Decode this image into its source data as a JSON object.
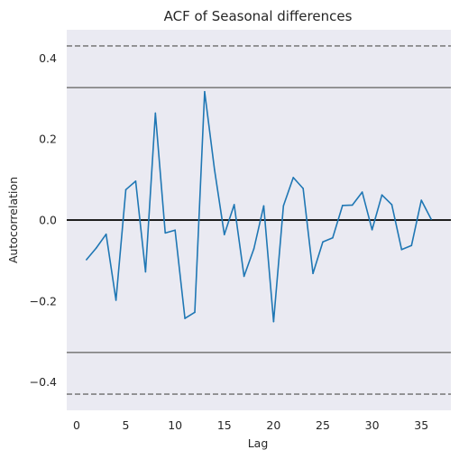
{
  "chart_data": {
    "type": "line",
    "title": "ACF of Seasonal differences",
    "xlabel": "Lag",
    "ylabel": "Autocorrelation",
    "xlim": [
      -1,
      38
    ],
    "ylim": [
      -0.47,
      0.47
    ],
    "x_ticks": [
      0,
      5,
      10,
      15,
      20,
      25,
      30,
      35
    ],
    "y_ticks": [
      -0.4,
      -0.2,
      0.0,
      0.2,
      0.4
    ],
    "y_tick_labels": [
      "−0.4",
      "−0.2",
      "0.0",
      "0.2",
      "0.4"
    ],
    "grid": false,
    "background": "#eaeaf2",
    "series": [
      {
        "color": "#1f77b4",
        "x": [
          1,
          2,
          3,
          4,
          5,
          6,
          7,
          8,
          9,
          10,
          11,
          12,
          13,
          14,
          15,
          16,
          17,
          18,
          19,
          20,
          21,
          22,
          23,
          24,
          25,
          26,
          27,
          28,
          29,
          30,
          31,
          32,
          33,
          34,
          35,
          36
        ],
        "values": [
          -0.098,
          -0.069,
          -0.035,
          -0.198,
          0.075,
          0.096,
          -0.128,
          0.264,
          -0.032,
          -0.025,
          -0.243,
          -0.228,
          0.317,
          0.125,
          -0.036,
          0.038,
          -0.139,
          -0.071,
          0.035,
          -0.251,
          0.035,
          0.105,
          0.078,
          -0.132,
          -0.054,
          -0.044,
          0.036,
          0.037,
          0.069,
          -0.024,
          0.062,
          0.038,
          -0.073,
          -0.063,
          0.049,
          0.002
        ]
      }
    ],
    "reference_lines": [
      {
        "y": 0.0,
        "style": "solid",
        "color": "#000000"
      },
      {
        "y": 0.327,
        "style": "solid",
        "color": "#808080"
      },
      {
        "y": -0.327,
        "style": "solid",
        "color": "#808080"
      },
      {
        "y": 0.43,
        "style": "dashed",
        "color": "#808080"
      },
      {
        "y": -0.43,
        "style": "dashed",
        "color": "#808080"
      }
    ]
  }
}
